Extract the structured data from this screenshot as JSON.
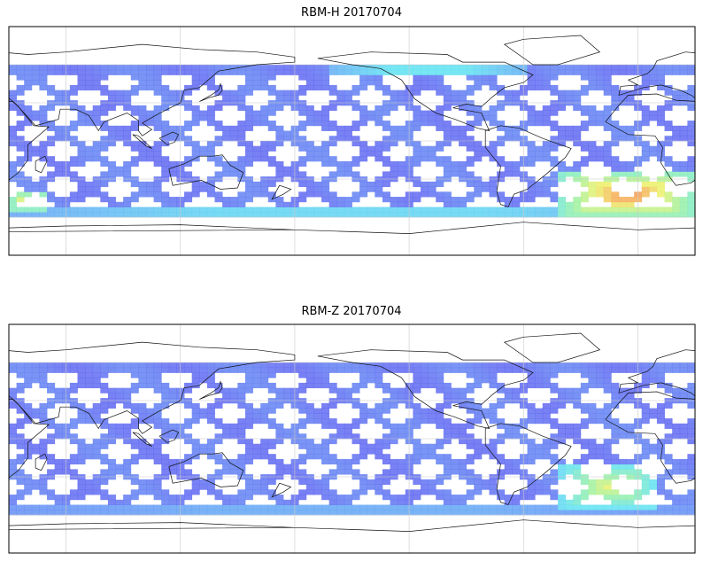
{
  "chart_data": [
    {
      "type": "heatmap",
      "title": "RBM-H 20170704",
      "xlabel": "",
      "ylabel": "",
      "grid": true,
      "legend": "none",
      "colormap": "jet",
      "value_range": [
        0,
        1
      ],
      "low_color": "#5a5ff0",
      "high_color": "#e0504a",
      "x_range": [
        30,
        390
      ],
      "y_range": [
        -90,
        90
      ],
      "data_lat_range": [
        -60,
        60
      ],
      "coastlines": true,
      "tracks": "crossing ascending/descending satellite swaths",
      "hotspots": [
        {
          "region": "south-atlantic",
          "lon_range": [
            320,
            390
          ],
          "lat_range": [
            -60,
            -25
          ],
          "level": 0.95
        },
        {
          "region": "south-indian-west",
          "lon_range": [
            30,
            50
          ],
          "lat_range": [
            -55,
            -40
          ],
          "level": 0.85
        },
        {
          "region": "southern-ocean-belt",
          "lon_range": [
            30,
            390
          ],
          "lat_range": [
            -60,
            -52
          ],
          "level": 0.5
        },
        {
          "region": "north-pacific-band",
          "lon_range": [
            200,
            300
          ],
          "lat_range": [
            52,
            60
          ],
          "level": 0.55
        }
      ]
    },
    {
      "type": "heatmap",
      "title": "RBM-Z 20170704",
      "xlabel": "",
      "ylabel": "",
      "grid": true,
      "legend": "none",
      "colormap": "jet",
      "value_range": [
        0,
        1
      ],
      "low_color": "#5a5ff0",
      "high_color": "#e0504a",
      "x_range": [
        30,
        390
      ],
      "y_range": [
        -90,
        90
      ],
      "data_lat_range": [
        -60,
        60
      ],
      "coastlines": true,
      "tracks": "crossing ascending/descending satellite swaths",
      "hotspots": [
        {
          "region": "south-atlantic",
          "lon_range": [
            320,
            370
          ],
          "lat_range": [
            -55,
            -20
          ],
          "level": 0.75
        },
        {
          "region": "southern-ocean-belt",
          "lon_range": [
            30,
            390
          ],
          "lat_range": [
            -60,
            -52
          ],
          "level": 0.35
        }
      ]
    }
  ]
}
